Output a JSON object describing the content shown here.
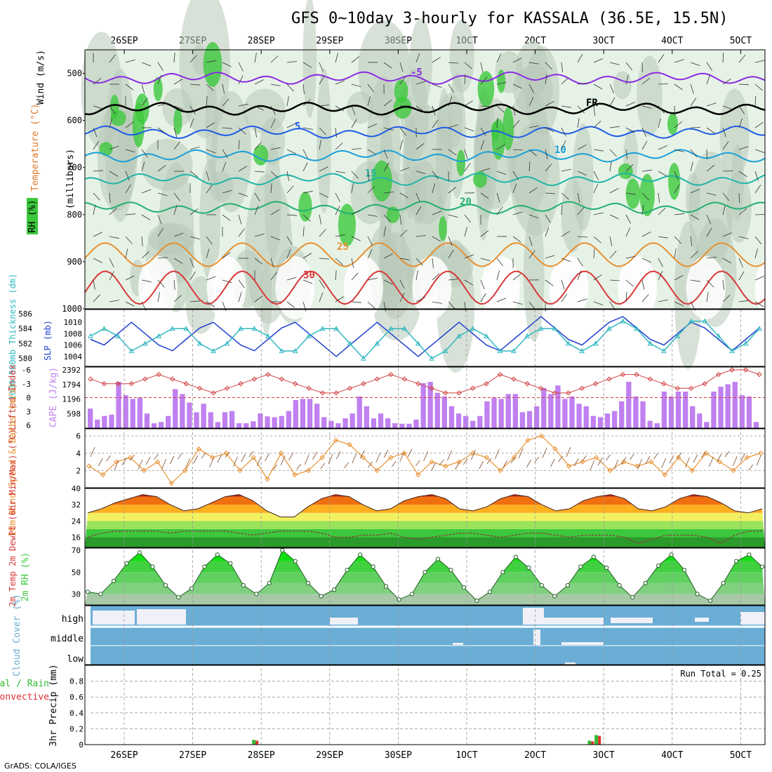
{
  "title": "GFS 0~10day 3-hourly for KASSALA (36.5E, 15.5N)",
  "credit": "GrADS: COLA/IGES",
  "colors": {
    "rh": "#3cc83c",
    "temp": "#e07a2a",
    "wind": "#333333",
    "purple": "#8a2be2",
    "blue": "#1e5be6",
    "cyan": "#1aa0d8",
    "teal": "#20b5a8",
    "green": "#22b070",
    "orange": "#e89030",
    "red": "#d83838",
    "cape": "#c080f0",
    "li": "#d04040",
    "slp": "#1f3fd0",
    "thick": "#30b8c0",
    "cloud": "#6aaed6",
    "precip_total": "#33bb33",
    "precip_conv": "#e03030"
  },
  "date_labels": [
    "26SEP",
    "27SEP",
    "28SEP",
    "29SEP",
    "30SEP",
    "1OCT",
    "2OCT",
    "3OCT",
    "4OCT",
    "5OCT"
  ],
  "chart_data": [
    {
      "type": "heatmap",
      "panel": "upper-air",
      "ylabel": "(millibars)",
      "yaxis_labels": [
        "Wind (m/s)",
        "Temperature (°C)",
        "RH (%)"
      ],
      "y_ticks": [
        500,
        600,
        700,
        800,
        900,
        1000
      ],
      "ylim": [
        1000,
        450
      ],
      "contour_labels": [
        "-5",
        "FR",
        "5",
        "10",
        "15",
        "20",
        "25",
        "30"
      ],
      "isotherms": [
        {
          "label": "-5",
          "level": 510
        },
        {
          "label": "FR",
          "level": 575
        },
        {
          "label": "5",
          "level": 625
        },
        {
          "label": "10",
          "level": 675
        },
        {
          "label": "15",
          "level": 725
        },
        {
          "label": "20",
          "level": 785
        },
        {
          "label": "25",
          "level": 860
        },
        {
          "label": "30",
          "level": 920
        }
      ]
    },
    {
      "type": "line",
      "panel": "slp-thickness",
      "ylabel_left": "1000-500mb Thickness (dm)",
      "ylabel_right": "SLP (mb)",
      "left_ticks": [
        580,
        582,
        584,
        586
      ],
      "right_ticks": [
        1004,
        1006,
        1008,
        1010
      ],
      "series": [
        {
          "name": "SLP",
          "values": [
            1007,
            1006,
            1008,
            1010,
            1008,
            1006,
            1005,
            1007,
            1009,
            1010,
            1008,
            1006,
            1005,
            1007,
            1009,
            1010,
            1008,
            1006,
            1004,
            1006,
            1008,
            1010,
            1008,
            1006,
            1004,
            1006,
            1008,
            1010,
            1008,
            1006,
            1005,
            1007,
            1009,
            1011,
            1009,
            1007,
            1006,
            1008,
            1010,
            1011,
            1009,
            1007,
            1006,
            1008,
            1010,
            1009,
            1007,
            1005,
            1007,
            1009
          ]
        },
        {
          "name": "Thickness",
          "values": [
            583,
            584,
            583,
            581,
            582,
            583,
            584,
            584,
            582,
            581,
            582,
            584,
            584,
            583,
            581,
            581,
            583,
            584,
            584,
            582,
            580,
            582,
            584,
            584,
            582,
            580,
            581,
            583,
            584,
            583,
            581,
            581,
            583,
            584,
            584,
            582,
            581,
            582,
            584,
            585,
            584,
            582,
            581,
            583,
            585,
            585,
            583,
            581,
            582,
            584
          ]
        }
      ]
    },
    {
      "type": "bar",
      "panel": "cape-lifted-index",
      "ylabel_left": "Lifted Index",
      "ylabel_right": "CAPE (J/kg)",
      "left_ticks": [
        -6,
        -3,
        0,
        3,
        6
      ],
      "right_ticks": [
        598,
        1196,
        1794,
        2392
      ],
      "series": [
        {
          "name": "CAPE",
          "values": [
            800,
            350,
            500,
            550,
            1900,
            1350,
            1200,
            1250,
            600,
            200,
            250,
            500,
            1600,
            1400,
            1050,
            650,
            1000,
            650,
            250,
            650,
            700,
            200,
            200,
            280,
            600,
            480,
            450,
            500,
            700,
            1150,
            1200,
            1200,
            1000,
            450,
            300,
            200,
            400,
            600,
            1300,
            900,
            400,
            600,
            400,
            200,
            180,
            180,
            350,
            1850,
            1900,
            1450,
            1300,
            900,
            600,
            500,
            300,
            500,
            1100,
            1250,
            1200,
            1400,
            1400,
            650,
            700,
            900,
            1650,
            1400,
            1750,
            1200,
            1300,
            1000,
            900,
            500,
            450,
            600,
            700,
            1100,
            1900,
            1300,
            1100,
            300,
            200,
            1500,
            1300,
            1500,
            1500,
            900,
            600,
            250,
            1500,
            1700,
            1800,
            1900,
            1350,
            1300,
            250
          ]
        },
        {
          "name": "Lifted Index",
          "values": [
            -4,
            -3,
            -3,
            -3,
            -4,
            -5,
            -4,
            -3,
            -2,
            -1,
            -2,
            -3,
            -4,
            -5,
            -4,
            -3,
            -2,
            -1,
            -1,
            -2,
            -3,
            -4,
            -5,
            -4,
            -3,
            -2,
            -1,
            -1,
            -2,
            -3,
            -5,
            -4,
            -3,
            -2,
            -1,
            -1,
            -2,
            -3,
            -4,
            -5,
            -5,
            -4,
            -3,
            -2,
            -2,
            -3,
            -5,
            -6,
            -6,
            -5
          ]
        }
      ]
    },
    {
      "type": "line",
      "panel": "wind-10m",
      "ylabel": "10m Wind Speed & Barbs (m/s)",
      "y_ticks": [
        2,
        4,
        6
      ],
      "ylim": [
        0,
        6.5
      ],
      "series": [
        {
          "name": "Speed",
          "values": [
            2.5,
            1.5,
            3,
            3.5,
            2,
            3,
            0.5,
            2,
            4.5,
            3.5,
            4,
            2,
            3.5,
            1,
            4,
            1.5,
            2,
            3.5,
            5.5,
            5,
            3.5,
            2,
            3.5,
            4,
            1.5,
            3,
            2.5,
            3,
            4,
            3.5,
            2,
            3.5,
            5.5,
            6,
            4.5,
            2.5,
            3,
            3.5,
            2,
            3,
            2.5,
            3,
            1.5,
            3.5,
            2,
            4,
            3,
            2,
            3.5,
            4
          ]
        }
      ]
    },
    {
      "type": "area",
      "panel": "temp-2m",
      "ylabel": "2m Temp 2m DewPt (6hr Min/Max) (°C)",
      "y_ticks": [
        16,
        24,
        32,
        40
      ],
      "ylim": [
        11,
        40
      ],
      "series": [
        {
          "name": "2m Temp",
          "values": [
            28,
            30,
            33,
            35,
            37,
            36,
            32,
            29,
            30,
            33,
            36,
            37,
            34,
            29,
            26,
            26,
            31,
            35,
            37,
            36,
            32,
            29,
            30,
            34,
            36,
            37,
            35,
            30,
            29,
            31,
            35,
            37,
            36,
            32,
            29,
            30,
            34,
            36,
            37,
            35,
            30,
            29,
            31,
            35,
            37,
            36,
            33,
            29,
            28,
            30
          ]
        },
        {
          "name": "2m DewPt",
          "values": [
            16,
            18,
            19,
            19,
            19,
            19,
            18,
            19,
            19,
            19,
            19,
            18,
            17,
            18,
            19,
            19,
            19,
            18,
            16,
            16,
            17,
            17,
            18,
            16,
            15,
            16,
            17,
            18,
            18,
            17,
            16,
            17,
            18,
            18,
            17,
            16,
            17,
            17,
            17,
            16,
            13,
            15,
            17,
            17,
            17,
            16,
            13,
            17,
            19,
            19
          ]
        }
      ]
    },
    {
      "type": "area",
      "panel": "rh-2m",
      "ylabel": "2m RH (%)",
      "y_ticks": [
        30,
        50,
        70
      ],
      "ylim": [
        20,
        72
      ],
      "series": [
        {
          "name": "2m RH",
          "values": [
            32,
            30,
            42,
            58,
            68,
            55,
            38,
            27,
            35,
            55,
            66,
            58,
            38,
            30,
            40,
            70,
            60,
            40,
            28,
            34,
            52,
            66,
            55,
            37,
            25,
            30,
            50,
            62,
            52,
            36,
            24,
            32,
            50,
            64,
            54,
            38,
            28,
            38,
            55,
            64,
            54,
            38,
            27,
            40,
            56,
            66,
            52,
            30,
            24,
            40,
            60,
            66,
            55
          ]
        }
      ]
    },
    {
      "type": "area",
      "panel": "cloud-cover",
      "ylabel": "Cloud Cover (%)",
      "levels": [
        "high",
        "middle",
        "low"
      ]
    },
    {
      "type": "bar",
      "panel": "precip-3hr",
      "ylabel": "3hr Precip (mm)",
      "legend": [
        "Total / Rain",
        "Convective"
      ],
      "y_ticks": [
        0,
        0.2,
        0.4,
        0.6,
        0.8
      ],
      "ylim": [
        0,
        1
      ],
      "run_total": "Run Total = 0.25",
      "series": [
        {
          "name": "Total / Rain",
          "values": [
            {
              "day": 2.0,
              "v": 0.06
            },
            {
              "day": 6.9,
              "v": 0.05
            },
            {
              "day": 7.0,
              "v": 0.12
            }
          ]
        },
        {
          "name": "Convective",
          "values": [
            {
              "day": 2.0,
              "v": 0.05
            },
            {
              "day": 6.9,
              "v": 0.04
            },
            {
              "day": 7.0,
              "v": 0.11
            }
          ]
        }
      ]
    }
  ]
}
